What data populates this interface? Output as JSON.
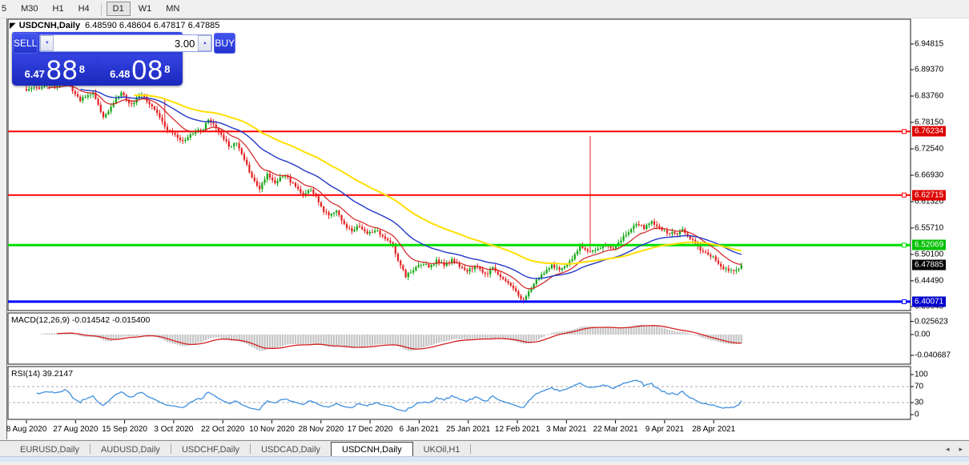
{
  "colors": {
    "candle_up": "#0fa50f",
    "candle_down": "#e42020",
    "ma_fast": "#d42020",
    "ma_mid": "#2238c8",
    "ma_slow": "#ffdf00",
    "macd_hist": "#c4c4c4",
    "macd_signal": "#d42020",
    "rsi_line": "#3f8fdf",
    "level_red": "#ff0000",
    "level_green": "#00dd00",
    "level_blue": "#0000ff",
    "badge_red": "#dd0000",
    "badge_green": "#00c000",
    "badge_black": "#000000",
    "badge_blue": "#0000cc",
    "panel_blue": "#2333d8"
  },
  "icons": {
    "cursor_arrow": "◤",
    "volume_down": "▼",
    "volume_up": "▲",
    "tab_scroll_left": "◂",
    "tab_scroll_right": "▸"
  },
  "toolbar": {
    "timeframes": [
      {
        "label": "5",
        "clipped": true
      },
      {
        "label": "M30"
      },
      {
        "label": "H1"
      },
      {
        "label": "H4",
        "sep_after": true
      },
      {
        "label": "D1",
        "active": true
      },
      {
        "label": "W1"
      },
      {
        "label": "MN"
      }
    ]
  },
  "chart": {
    "title": "USDCNH,Daily",
    "ohlc": "6.48590 6.48604 6.47817 6.47885"
  },
  "trade_panel": {
    "sell_label": "SELL",
    "buy_label": "BUY",
    "volume": "3.00",
    "sell_price": {
      "small": "6.47",
      "big": "88",
      "sup": "8"
    },
    "buy_price": {
      "small": "6.48",
      "big": "08",
      "sup": "8"
    }
  },
  "indicators": {
    "macd_label": "MACD(12,26,9) -0.014542 -0.015400",
    "rsi_label": "RSI(14) 39.2147"
  },
  "axes": {
    "price_labels": [
      {
        "text": "6.94815",
        "value": 6.94815
      },
      {
        "text": "6.89370",
        "value": 6.8937
      },
      {
        "text": "6.83760",
        "value": 6.8376
      },
      {
        "text": "6.78150",
        "value": 6.7815
      },
      {
        "text": "6.72540",
        "value": 6.7254
      },
      {
        "text": "6.66930",
        "value": 6.6693
      },
      {
        "text": "6.61320",
        "value": 6.6132
      },
      {
        "text": "6.55710",
        "value": 6.5571
      },
      {
        "text": "6.50100",
        "value": 6.501
      },
      {
        "text": "6.44490",
        "value": 6.4449
      },
      {
        "text": "6.39045",
        "value": 6.39045
      }
    ],
    "price_badges": [
      {
        "text": "6.76234",
        "value": 6.76234,
        "color": "#dd0000"
      },
      {
        "text": "6.62715",
        "value": 6.62715,
        "color": "#dd0000"
      },
      {
        "text": "6.52069",
        "value": 6.52069,
        "color": "#00c000"
      },
      {
        "text": "6.47885",
        "value": 6.47885,
        "color": "#000000"
      },
      {
        "text": "6.40071",
        "value": 6.40071,
        "color": "#0000cc"
      }
    ],
    "macd_labels": [
      {
        "text": "0.025623",
        "value": 0.025623
      },
      {
        "text": "0.00",
        "value": 0
      },
      {
        "text": "-0.040687",
        "value": -0.040687
      }
    ],
    "rsi_labels": [
      {
        "text": "100",
        "value": 100
      },
      {
        "text": "70",
        "value": 70
      },
      {
        "text": "30",
        "value": 30
      },
      {
        "text": "0",
        "value": 0
      }
    ],
    "dates": [
      "8 Aug 2020",
      "27 Aug 2020",
      "15 Sep 2020",
      "3 Oct 2020",
      "22 Oct 2020",
      "10 Nov 2020",
      "28 Nov 2020",
      "17 Dec 2020",
      "6 Jan 2021",
      "25 Jan 2021",
      "12 Feb 2021",
      "3 Mar 2021",
      "22 Mar 2021",
      "9 Apr 2021",
      "28 Apr 2021"
    ]
  },
  "chart_data": [
    {
      "type": "candlestick",
      "symbol": "USDCNH",
      "timeframe": "Daily",
      "open": 6.4859,
      "high": 6.48604,
      "low": 6.47817,
      "close": 6.47885,
      "y_range": [
        6.39045,
        6.94815
      ],
      "bars": 280,
      "price_path": [
        [
          0,
          6.852
        ],
        [
          8,
          6.858
        ],
        [
          13,
          6.862
        ],
        [
          16,
          6.865
        ],
        [
          21,
          6.83
        ],
        [
          26,
          6.845
        ],
        [
          30,
          6.79
        ],
        [
          33,
          6.815
        ],
        [
          37,
          6.845
        ],
        [
          41,
          6.82
        ],
        [
          45,
          6.842
        ],
        [
          51,
          6.8
        ],
        [
          55,
          6.768
        ],
        [
          60,
          6.742
        ],
        [
          65,
          6.758
        ],
        [
          69,
          6.77
        ],
        [
          71,
          6.788
        ],
        [
          74,
          6.77
        ],
        [
          79,
          6.73
        ],
        [
          82,
          6.738
        ],
        [
          85,
          6.7
        ],
        [
          88,
          6.665
        ],
        [
          91,
          6.642
        ],
        [
          94,
          6.672
        ],
        [
          97,
          6.655
        ],
        [
          101,
          6.67
        ],
        [
          105,
          6.645
        ],
        [
          108,
          6.625
        ],
        [
          111,
          6.642
        ],
        [
          115,
          6.6
        ],
        [
          118,
          6.585
        ],
        [
          121,
          6.592
        ],
        [
          124,
          6.566
        ],
        [
          127,
          6.55
        ],
        [
          130,
          6.562
        ],
        [
          133,
          6.545
        ],
        [
          137,
          6.552
        ],
        [
          140,
          6.536
        ],
        [
          143,
          6.52
        ],
        [
          146,
          6.478
        ],
        [
          148,
          6.452
        ],
        [
          151,
          6.47
        ],
        [
          154,
          6.48
        ],
        [
          157,
          6.474
        ],
        [
          160,
          6.49
        ],
        [
          163,
          6.476
        ],
        [
          166,
          6.49
        ],
        [
          169,
          6.476
        ],
        [
          172,
          6.468
        ],
        [
          176,
          6.476
        ],
        [
          179,
          6.46
        ],
        [
          182,
          6.47
        ],
        [
          185,
          6.455
        ],
        [
          188,
          6.44
        ],
        [
          191,
          6.42
        ],
        [
          194,
          6.404
        ],
        [
          197,
          6.426
        ],
        [
          199,
          6.45
        ],
        [
          202,
          6.462
        ],
        [
          205,
          6.476
        ],
        [
          208,
          6.47
        ],
        [
          211,
          6.48
        ],
        [
          214,
          6.5
        ],
        [
          216,
          6.52
        ],
        [
          219,
          6.506
        ],
        [
          222,
          6.512
        ],
        [
          226,
          6.52
        ],
        [
          229,
          6.514
        ],
        [
          232,
          6.53
        ],
        [
          235,
          6.55
        ],
        [
          238,
          6.565
        ],
        [
          241,
          6.558
        ],
        [
          244,
          6.57
        ],
        [
          247,
          6.556
        ],
        [
          251,
          6.548
        ],
        [
          254,
          6.544
        ],
        [
          256,
          6.556
        ],
        [
          258,
          6.54
        ],
        [
          261,
          6.524
        ],
        [
          263,
          6.51
        ],
        [
          266,
          6.5
        ],
        [
          269,
          6.49
        ],
        [
          272,
          6.47
        ],
        [
          275,
          6.464
        ],
        [
          277,
          6.47
        ],
        [
          279,
          6.47885
        ]
      ],
      "spikes": [
        {
          "i": 54,
          "high": 6.832
        },
        {
          "i": 195,
          "low": 6.398
        },
        {
          "i": 220,
          "high": 6.753
        }
      ],
      "moving_averages": [
        {
          "period": 13,
          "color": "#d42020",
          "width": 1.2
        },
        {
          "period": 34,
          "color": "#2238c8",
          "width": 1.4
        },
        {
          "period": 68,
          "color": "#ffdf00",
          "width": 2
        }
      ],
      "levels": [
        {
          "price": 6.76234,
          "color": "#ff0000",
          "width": 2
        },
        {
          "price": 6.62715,
          "color": "#ff0000",
          "width": 2
        },
        {
          "price": 6.52069,
          "color": "#00dd00",
          "width": 3
        },
        {
          "price": 6.40071,
          "color": "#0000ff",
          "width": 3
        }
      ]
    },
    {
      "type": "macd",
      "params": [
        12,
        26,
        9
      ],
      "main_value": -0.014542,
      "signal_value": -0.0154,
      "axis_ticks": [
        0.025623,
        0,
        -0.040687
      ],
      "derived_from": "price_path"
    },
    {
      "type": "line",
      "name": "RSI",
      "params": [
        14
      ],
      "value": 39.2147,
      "y_range": [
        0,
        100
      ],
      "guides": [
        30,
        70
      ],
      "derived_from": "price_path"
    }
  ],
  "tabs": {
    "items": [
      {
        "label": "EURUSD,Daily"
      },
      {
        "label": "AUDUSD,Daily"
      },
      {
        "label": "USDCHF,Daily"
      },
      {
        "label": "USDCAD,Daily"
      },
      {
        "label": "USDCNH,Daily",
        "active": true
      },
      {
        "label": "UKOil,H1"
      }
    ]
  }
}
